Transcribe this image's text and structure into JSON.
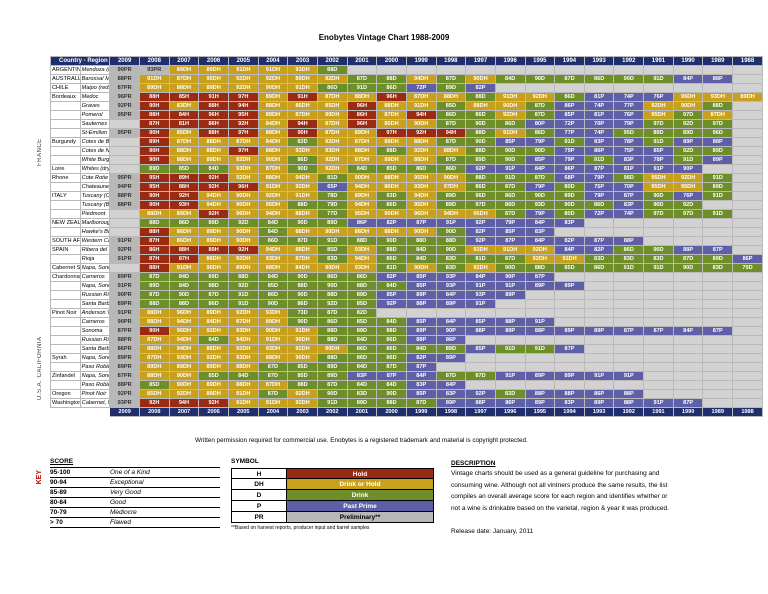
{
  "title": "Enobytes Vintage Chart 1988-2009",
  "header": "Country - Region - Appellation - Type",
  "years": [
    "2009",
    "2008",
    "2007",
    "2006",
    "2005",
    "2004",
    "2003",
    "2002",
    "2001",
    "2000",
    "1999",
    "1998",
    "1997",
    "1996",
    "1995",
    "1994",
    "1993",
    "1992",
    "1991",
    "1990",
    "1989",
    "1988"
  ],
  "bands": [
    "FRANCE",
    "U.S.A. CALIFORNIA"
  ],
  "rows": [
    {
      "region": "ARGENTINA",
      "app": "Mendoza (reds)",
      "cells": [
        "90PR",
        "93PR",
        "89DH",
        "89DH",
        "91DH",
        "91DH",
        "93DH",
        "88D",
        "",
        "",
        "",
        "",
        "",
        "",
        "",
        "",
        "",
        "",
        "",
        "",
        "",
        ""
      ]
    },
    {
      "region": "AUSTRALIA",
      "app": "Barossa/ McLaren Vale",
      "cells": [
        "88PR",
        "91DH",
        "87DH",
        "95DH",
        "92DH",
        "92DH",
        "89DH",
        "92DH",
        "87D",
        "88D",
        "94DH",
        "87D",
        "90DH",
        "84D",
        "90D",
        "87D",
        "86D",
        "90D",
        "91D",
        "84P",
        "88P",
        ""
      ]
    },
    {
      "region": "CHILE",
      "app": "Maipo (reds)",
      "cells": [
        "87PR",
        "89DH",
        "88DH",
        "89DH",
        "92DH",
        "90DH",
        "91DH",
        "86D",
        "91D",
        "86D",
        "72P",
        "89D",
        "82P",
        "",
        "",
        "",
        "",
        "",
        "",
        "",
        "",
        ""
      ]
    },
    {
      "region": "Bordeaux",
      "app": "Medoc",
      "cells": [
        "96PR",
        "88H",
        "85H",
        "91H",
        "97H",
        "89DH",
        "91H",
        "87DH",
        "88DH",
        "96H",
        "87DH",
        "88DH",
        "88D",
        "91DH",
        "92DH",
        "86D",
        "81P",
        "74P",
        "76P",
        "95DH",
        "93DH",
        "89DH"
      ]
    },
    {
      "region": "",
      "app": "Graves",
      "cells": [
        "92PR",
        "90H",
        "83DH",
        "88H",
        "94H",
        "88DH",
        "86DH",
        "85DH",
        "96H",
        "88DH",
        "91DH",
        "85D",
        "88DH",
        "90DH",
        "87D",
        "86P",
        "74P",
        "77P",
        "92DH",
        "90DH",
        "88D",
        ""
      ]
    },
    {
      "region": "",
      "app": "Pomerol",
      "cells": [
        "95PR",
        "88H",
        "84H",
        "96H",
        "95H",
        "89DH",
        "87DH",
        "90DH",
        "86H",
        "87DH",
        "94H",
        "86D",
        "86D",
        "92DH",
        "87D",
        "85P",
        "81P",
        "76P",
        "95DH",
        "97D",
        "87DH",
        ""
      ]
    },
    {
      "region": "",
      "app": "Sauternes",
      "cells": [
        "",
        "87H",
        "81H",
        "86H",
        "92H",
        "84DH",
        "94H",
        "87DH",
        "96H",
        "85DH",
        "90DH",
        "87D",
        "90D",
        "86D",
        "80P",
        "72P",
        "70P",
        "79P",
        "97D",
        "92D",
        "97D",
        ""
      ]
    },
    {
      "region": "",
      "app": "St-Emilion",
      "cells": [
        "95PR",
        "90H",
        "85DH",
        "88H",
        "97H",
        "88DH",
        "90H",
        "87DH",
        "89DH",
        "97H",
        "92H",
        "94H",
        "88D",
        "91DH",
        "86D",
        "77P",
        "74P",
        "95D",
        "89D",
        "89D",
        "96D",
        ""
      ]
    },
    {
      "region": "Burgundy",
      "app": "Cotes de Beaune (reds)",
      "cells": [
        "",
        "89H",
        "87DH",
        "88DH",
        "87DH",
        "84DH",
        "83D",
        "92DH",
        "87DH",
        "89DH",
        "88DH",
        "87D",
        "90D",
        "85P",
        "79P",
        "91D",
        "83P",
        "78P",
        "91D",
        "89P",
        "88P",
        ""
      ]
    },
    {
      "region": "",
      "app": "Cotes de Nuits (reds)",
      "cells": [
        "",
        "90H",
        "88DH",
        "88DH",
        "97H",
        "88DH",
        "93DH",
        "93DH",
        "88DH",
        "88D",
        "92DH",
        "88DH",
        "88D",
        "90D",
        "90D",
        "79P",
        "86P",
        "75P",
        "85P",
        "92D",
        "89D",
        ""
      ]
    },
    {
      "region": "",
      "app": "White Burgundy",
      "cells": [
        "",
        "90H",
        "88DH",
        "89DH",
        "92DH",
        "90DH",
        "86D",
        "92DH",
        "87DH",
        "89DH",
        "88DH",
        "87D",
        "89D",
        "90D",
        "85P",
        "79P",
        "91D",
        "83P",
        "78P",
        "91D",
        "89P",
        ""
      ]
    },
    {
      "region": "Loire",
      "app": "Whites (dry)",
      "cells": [
        "",
        "89D",
        "85D",
        "84D",
        "93DH",
        "87DH",
        "90D",
        "92DH",
        "84D",
        "85D",
        "86D",
        "86D",
        "92P",
        "91P",
        "84P",
        "86P",
        "87P",
        "81P",
        "91P",
        "90P",
        "",
        ""
      ]
    },
    {
      "region": "Rhone",
      "app": "Cote Rotie",
      "cells": [
        "95PR",
        "95H",
        "89H",
        "92H",
        "92DH",
        "88DH",
        "94DH",
        "81D",
        "90DH",
        "88DH",
        "95DH",
        "90DH",
        "88D",
        "91D",
        "87D",
        "68P",
        "79P",
        "96D",
        "95DH",
        "92DH",
        "91D",
        ""
      ]
    },
    {
      "region": "",
      "app": "Chateauneuf du Pape",
      "cells": [
        "94PR",
        "95H",
        "88H",
        "92H",
        "96H",
        "91DH",
        "92DH",
        "65P",
        "94DH",
        "86DH",
        "93DH",
        "97DH",
        "86D",
        "87D",
        "79P",
        "80D",
        "75P",
        "70P",
        "95DH",
        "95DH",
        "89D",
        ""
      ]
    },
    {
      "region": "ITALY",
      "app": "Tuscany (Chianti)",
      "cells": [
        "88PR",
        "90H",
        "92H",
        "94DH",
        "90DH",
        "92DH",
        "91DH",
        "78D",
        "89DH",
        "93D",
        "94DH",
        "89D",
        "96D",
        "86D",
        "90D",
        "89D",
        "79P",
        "87P",
        "90D",
        "76P",
        "91D",
        ""
      ]
    },
    {
      "region": "",
      "app": "Tuscany (Brunello)",
      "cells": [
        "88PR",
        "90H",
        "93H",
        "94DH",
        "90DH",
        "95DH",
        "88D",
        "79D",
        "94DH",
        "86D",
        "95DH",
        "89D",
        "97D",
        "86D",
        "93D",
        "90D",
        "86D",
        "83P",
        "90D",
        "92D",
        "",
        ""
      ]
    },
    {
      "region": "",
      "app": "Piedmont",
      "cells": [
        "",
        "88DH",
        "89DH",
        "92H",
        "96DH",
        "94DH",
        "88DH",
        "77D",
        "95DH",
        "90DH",
        "96DH",
        "94DH",
        "95DH",
        "87D",
        "79P",
        "80D",
        "72P",
        "74P",
        "97D",
        "97D",
        "91D",
        ""
      ]
    },
    {
      "region": "NEW ZEALAND",
      "app": "Marlborough (whites)",
      "cells": [
        "",
        "88D",
        "86D",
        "89D",
        "92D",
        "84D",
        "90D",
        "89D",
        "86P",
        "82P",
        "87P",
        "91P",
        "92P",
        "79P",
        "84P",
        "83P",
        "",
        "",
        "",
        "",
        "",
        ""
      ]
    },
    {
      "region": "",
      "app": "Hawke's Bay (reds)",
      "cells": [
        "",
        "88H",
        "86DH",
        "89DH",
        "90DH",
        "84D",
        "88DH",
        "90DH",
        "88DH",
        "88DH",
        "90DH",
        "90D",
        "82P",
        "85P",
        "83P",
        "",
        "",
        "",
        "",
        "",
        "",
        ""
      ]
    },
    {
      "region": "SOUTH AFRICA",
      "app": "Western Cape (reds)",
      "cells": [
        "91PR",
        "87H",
        "86DH",
        "89DH",
        "90DH",
        "86D",
        "87D",
        "91D",
        "88D",
        "90D",
        "88D",
        "88D",
        "92P",
        "87P",
        "84P",
        "82P",
        "87P",
        "88P",
        "",
        "",
        "",
        ""
      ]
    },
    {
      "region": "SPAIN",
      "app": "Ribera del Duero",
      "cells": [
        "92PR",
        "86H",
        "88H",
        "89H",
        "92H",
        "94DH",
        "88DH",
        "85D",
        "93DH",
        "88D",
        "84D",
        "90D",
        "93DH",
        "91DH",
        "92DH",
        "84P",
        "82P",
        "86D",
        "90D",
        "88P",
        "87P",
        ""
      ]
    },
    {
      "region": "",
      "app": "Rioja",
      "cells": [
        "91PR",
        "87H",
        "87H",
        "86DH",
        "92DH",
        "93DH",
        "87DH",
        "83D",
        "94DH",
        "86D",
        "84D",
        "83D",
        "81D",
        "87D",
        "92DH",
        "91DH",
        "83D",
        "83D",
        "83D",
        "87D",
        "89D",
        "86P"
      ]
    },
    {
      "region": "Cabernet Sauvignon",
      "app": "Napa, Sonoma",
      "cells": [
        "",
        "88H",
        "91DH",
        "90DH",
        "89DH",
        "88DH",
        "84DH",
        "90DH",
        "93DH",
        "81D",
        "90DH",
        "83D",
        "92DH",
        "90D",
        "88D",
        "85D",
        "86D",
        "91D",
        "91D",
        "90D",
        "83D",
        "79D"
      ]
    },
    {
      "region": "Chardonnay",
      "app": "Carneros",
      "cells": [
        "89PR",
        "87D",
        "84D",
        "89D",
        "88D",
        "84D",
        "90D",
        "86D",
        "86D",
        "82P",
        "85P",
        "93P",
        "84P",
        "90P",
        "87P",
        "",
        "",
        "",
        "",
        "",
        "",
        ""
      ]
    },
    {
      "region": "",
      "app": "Napa, Sonoma",
      "cells": [
        "91PR",
        "89D",
        "84D",
        "88D",
        "92D",
        "85D",
        "88D",
        "90D",
        "88D",
        "84D",
        "85P",
        "93P",
        "91P",
        "91P",
        "89P",
        "89P",
        "",
        "",
        "",
        "",
        "",
        ""
      ]
    },
    {
      "region": "",
      "app": "Russian River",
      "cells": [
        "90PR",
        "87D",
        "90D",
        "87D",
        "91D",
        "86D",
        "90D",
        "88D",
        "89D",
        "85P",
        "89P",
        "84P",
        "93P",
        "89P",
        "",
        "",
        "",
        "",
        "",
        "",
        "",
        ""
      ]
    },
    {
      "region": "",
      "app": "Santa Barbara",
      "cells": [
        "89PR",
        "88D",
        "88D",
        "86D",
        "91D",
        "90D",
        "86D",
        "92D",
        "85D",
        "92P",
        "88P",
        "89P",
        "91P",
        "",
        "",
        "",
        "",
        "",
        "",
        "",
        "",
        ""
      ]
    },
    {
      "region": "Pinot Noir",
      "app": "Anderson Valley",
      "cells": [
        "91PR",
        "88DH",
        "96DH",
        "89DH",
        "92DH",
        "93DH",
        "73D",
        "87D",
        "82D",
        "",
        "",
        "",
        "",
        "",
        "",
        "",
        "",
        "",
        "",
        "",
        "",
        ""
      ]
    },
    {
      "region": "",
      "app": "Carneros",
      "cells": [
        "90PR",
        "88DH",
        "94DH",
        "84DH",
        "87DH",
        "89DH",
        "90D",
        "86D",
        "85D",
        "84D",
        "85P",
        "84P",
        "85P",
        "88P",
        "91P",
        "",
        "",
        "",
        "",
        "",
        "",
        ""
      ]
    },
    {
      "region": "",
      "app": "Sonoma",
      "cells": [
        "87PR",
        "90H",
        "96DH",
        "92DH",
        "93DH",
        "90DH",
        "91DH",
        "88D",
        "89D",
        "88D",
        "89P",
        "90P",
        "88P",
        "89P",
        "88P",
        "89P",
        "89P",
        "87P",
        "87P",
        "84P",
        "87P",
        ""
      ]
    },
    {
      "region": "",
      "app": "Russian River",
      "cells": [
        "88PR",
        "87DH",
        "94DH",
        "84D",
        "94DH",
        "91DH",
        "90DH",
        "88D",
        "84D",
        "86D",
        "88P",
        "86P",
        "",
        "",
        "",
        "",
        "",
        "",
        "",
        "",
        "",
        ""
      ]
    },
    {
      "region": "",
      "app": "Santa Barbara",
      "cells": [
        "86PR",
        "88DH",
        "94DH",
        "86DH",
        "92DH",
        "93DH",
        "92DH",
        "90DH",
        "86D",
        "86D",
        "84D",
        "89D",
        "85P",
        "91D",
        "91D",
        "87P",
        "",
        "",
        "",
        "",
        "",
        ""
      ]
    },
    {
      "region": "Syrah",
      "app": "Napa, Sonoma",
      "cells": [
        "89PR",
        "87DH",
        "93DH",
        "92DH",
        "93DH",
        "88DH",
        "90DH",
        "88D",
        "86D",
        "86D",
        "82P",
        "89P",
        "",
        "",
        "",
        "",
        "",
        "",
        "",
        "",
        "",
        ""
      ]
    },
    {
      "region": "",
      "app": "Paso Robles",
      "cells": [
        "89PR",
        "89DH",
        "89DH",
        "89DH",
        "88DH",
        "87D",
        "85D",
        "89D",
        "84D",
        "87D",
        "87P",
        "",
        "",
        "",
        "",
        "",
        "",
        "",
        "",
        "",
        "",
        ""
      ]
    },
    {
      "region": "Zinfandel",
      "app": "Napa, Sonoma",
      "cells": [
        "87PR",
        "88DH",
        "90DH",
        "85D",
        "84D",
        "87D",
        "85D",
        "89D",
        "83P",
        "87P",
        "84P",
        "87D",
        "87D",
        "91P",
        "89P",
        "89P",
        "91P",
        "91P",
        "",
        "",
        "",
        ""
      ]
    },
    {
      "region": "",
      "app": "Paso Robles",
      "cells": [
        "88PR",
        "85D",
        "90DH",
        "89DH",
        "88DH",
        "87DH",
        "88D",
        "87D",
        "84D",
        "84D",
        "83P",
        "84P",
        "",
        "",
        "",
        "",
        "",
        "",
        "",
        "",
        "",
        ""
      ]
    },
    {
      "region": "Oregon",
      "app": "Pinot Noir",
      "cells": [
        "92PR",
        "85DH",
        "92DH",
        "89DH",
        "91DH",
        "87D",
        "92DH",
        "90D",
        "83D",
        "90D",
        "85P",
        "83P",
        "92P",
        "83D",
        "88P",
        "88P",
        "86P",
        "88P",
        "",
        "",
        "",
        ""
      ]
    },
    {
      "region": "Washington",
      "app": "Cabernet, Merlot",
      "cells": [
        "93PR",
        "92H",
        "94H",
        "92H",
        "91DH",
        "91DH",
        "92DH",
        "91D",
        "89D",
        "88D",
        "87D",
        "89P",
        "88P",
        "86P",
        "89P",
        "83P",
        "89P",
        "88P",
        "91P",
        "87P",
        "",
        ""
      ]
    }
  ],
  "permission": "Written permission required for commercial use. Enobytes is a registered trademark and material is copyright protected.",
  "key_label": "KEY",
  "score": {
    "heading": "SCORE",
    "rows": [
      {
        "range": "95-100",
        "label": "One of a Kind"
      },
      {
        "range": "90-94",
        "label": "Exceptional"
      },
      {
        "range": "85-89",
        "label": "Very Good"
      },
      {
        "range": "80-84",
        "label": "Good"
      },
      {
        "range": "70-79",
        "label": "Mediocre"
      },
      {
        "range": "> 70",
        "label": "Flawed"
      }
    ]
  },
  "symbol": {
    "heading": "SYMBOL",
    "rows": [
      {
        "code": "H",
        "meaning": "Hold",
        "color": "#9b2a12"
      },
      {
        "code": "DH",
        "meaning": "Drink or Hold",
        "color": "#c8a01c"
      },
      {
        "code": "D",
        "meaning": "Drink",
        "color": "#6e8e2a"
      },
      {
        "code": "P",
        "meaning": "Past Prime",
        "color": "#5f5fa8"
      },
      {
        "code": "PR",
        "meaning": "Preliminary**",
        "color": "#b8b8b8"
      }
    ],
    "note": "**Based on harvest reports, producer input and barrel samples"
  },
  "description": {
    "heading": "DESCRIPTION",
    "lines": [
      "Vintage charts should be used as a general guideline for purchasing and",
      "consuming wine. Although not all vintners produce the same results, the list",
      "compiles an overall average score for each region and identifies whether or",
      "not a wine is drinkable based on the varietal, region & year it was produced.",
      "",
      "Release date: January, 2011"
    ]
  }
}
